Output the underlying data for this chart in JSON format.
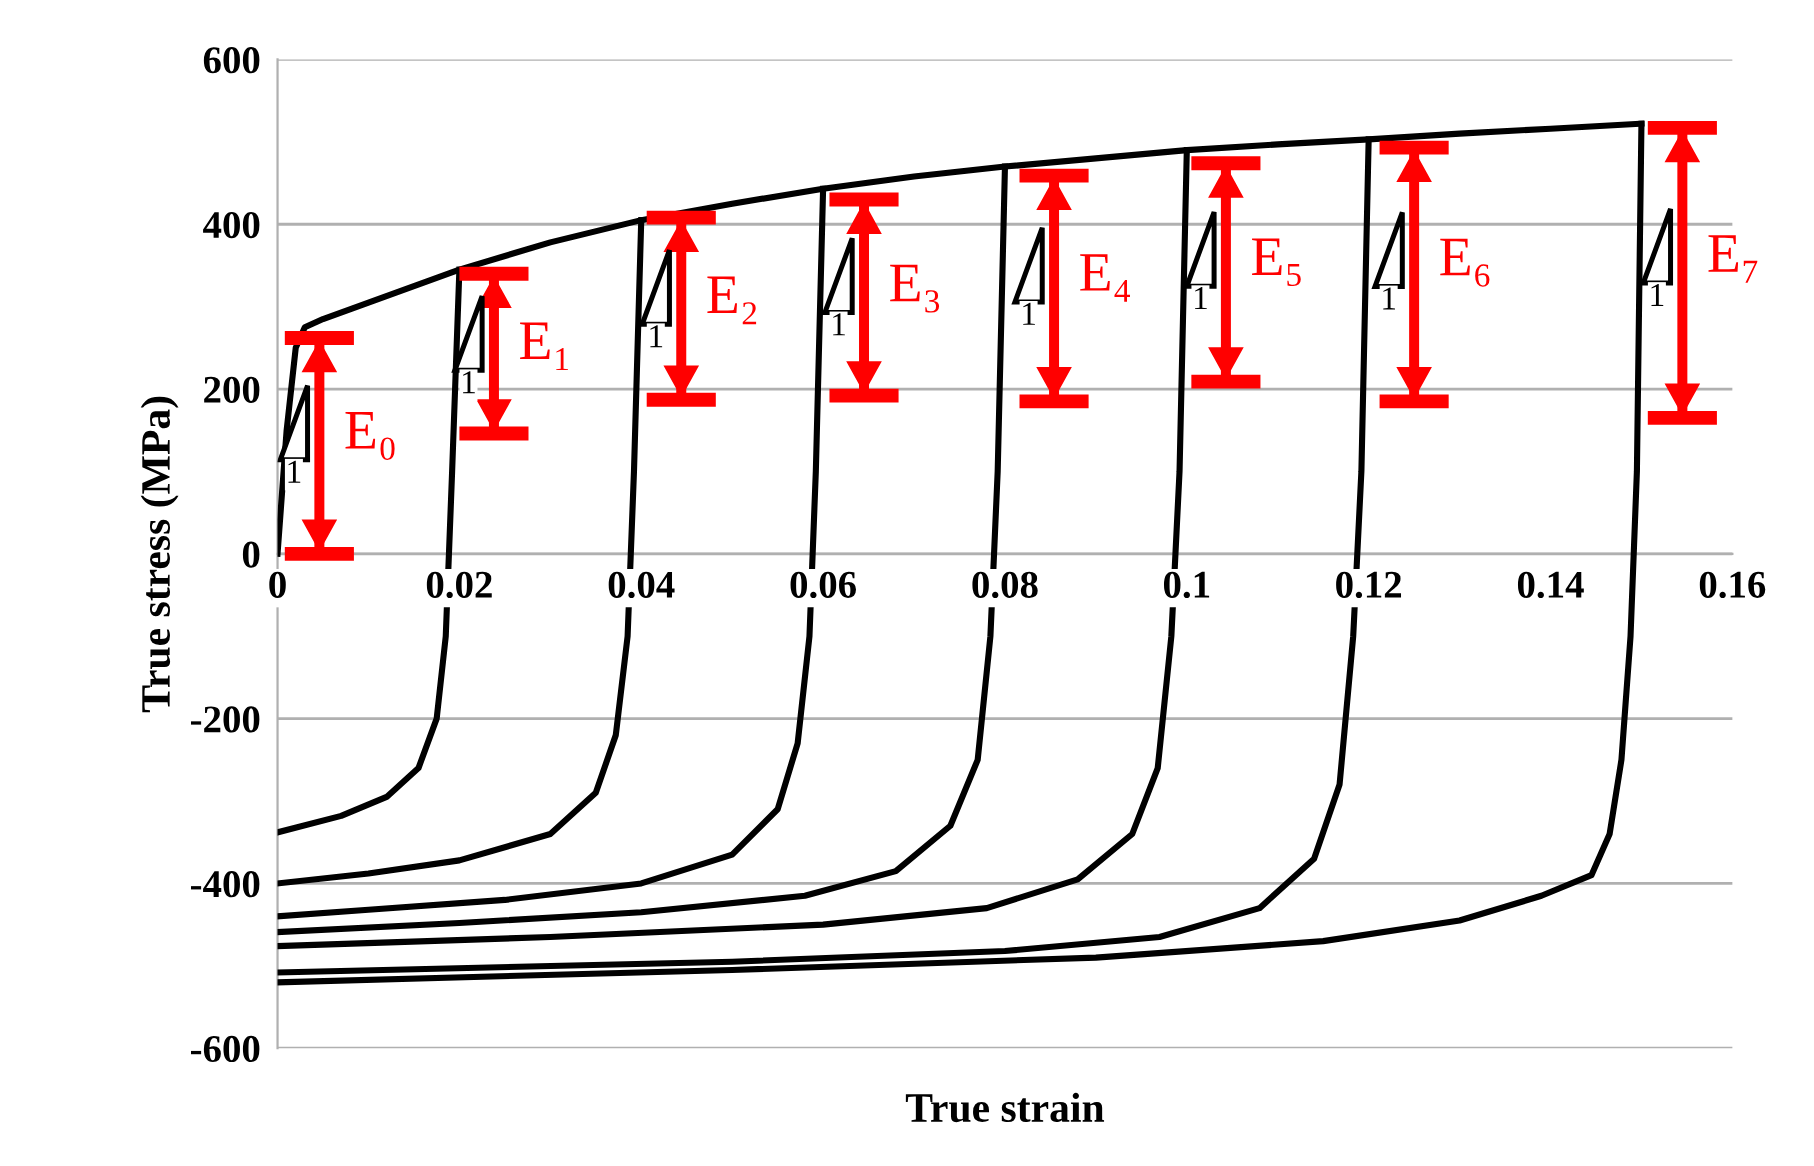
{
  "chart_data": {
    "type": "line",
    "xlabel": "True strain",
    "ylabel": "True stress (MPa)",
    "xlim": [
      0,
      0.16
    ],
    "xticks": [
      0,
      0.02,
      0.04,
      0.06,
      0.08,
      0.1,
      0.12,
      0.14,
      0.16
    ],
    "ylim": [
      -600,
      600
    ],
    "yticks": [
      -600,
      -400,
      -200,
      0,
      200,
      400,
      600
    ],
    "grid": "y",
    "line_style": "solid",
    "marker": "none",
    "series": [
      {
        "color": "#000000",
        "x": [
          0,
          0.001,
          0.002,
          0.003,
          0.005,
          0.01,
          0.02,
          0.03,
          0.04,
          0.05,
          0.06,
          0.07,
          0.08,
          0.09,
          0.1,
          0.11,
          0.12,
          0.13,
          0.14,
          0.15
        ],
        "values": [
          0,
          150,
          250,
          275,
          285,
          305,
          345,
          378,
          405,
          425,
          443,
          458,
          470,
          480,
          490,
          497,
          503,
          510,
          516,
          522
        ]
      },
      {
        "color": "#000000",
        "x": [
          0.02,
          0.0192,
          0.0185,
          0.0175,
          0.0155,
          0.012,
          0.007,
          0
        ],
        "values": [
          345,
          100,
          -100,
          -200,
          -260,
          -295,
          -318,
          -338
        ]
      },
      {
        "color": "#000000",
        "x": [
          0.04,
          0.0392,
          0.0385,
          0.0372,
          0.035,
          0.03,
          0.02,
          0.01,
          0
        ],
        "values": [
          405,
          100,
          -100,
          -220,
          -290,
          -340,
          -372,
          -388,
          -400
        ]
      },
      {
        "color": "#000000",
        "x": [
          0.06,
          0.0592,
          0.0585,
          0.0572,
          0.055,
          0.05,
          0.04,
          0.025,
          0.01,
          0
        ],
        "values": [
          443,
          100,
          -100,
          -230,
          -310,
          -365,
          -400,
          -420,
          -432,
          -440
        ]
      },
      {
        "color": "#000000",
        "x": [
          0.08,
          0.0792,
          0.0784,
          0.077,
          0.074,
          0.068,
          0.058,
          0.04,
          0.02,
          0
        ],
        "values": [
          470,
          100,
          -100,
          -250,
          -330,
          -385,
          -415,
          -435,
          -448,
          -459
        ]
      },
      {
        "color": "#000000",
        "x": [
          0.1,
          0.0992,
          0.0983,
          0.0968,
          0.094,
          0.088,
          0.078,
          0.06,
          0.03,
          0
        ],
        "values": [
          490,
          100,
          -100,
          -260,
          -340,
          -395,
          -430,
          -450,
          -465,
          -476
        ]
      },
      {
        "color": "#000000",
        "x": [
          0.12,
          0.1192,
          0.1183,
          0.1168,
          0.114,
          0.108,
          0.097,
          0.08,
          0.05,
          0
        ],
        "values": [
          503,
          100,
          -100,
          -280,
          -370,
          -430,
          -465,
          -482,
          -495,
          -508
        ]
      },
      {
        "color": "#000000",
        "x": [
          0.15,
          0.1495,
          0.1488,
          0.1478,
          0.1465,
          0.1445,
          0.139,
          0.13,
          0.115,
          0.09,
          0.05,
          0
        ],
        "values": [
          522,
          100,
          -100,
          -250,
          -340,
          -390,
          -415,
          -445,
          -470,
          -490,
          -505,
          -520
        ]
      },
      {
        "type": "bar",
        "color": "#ff0000",
        "x": [
          0.0046,
          0.0238,
          0.0444,
          0.0645,
          0.0854,
          0.1043,
          0.125,
          0.1545
        ],
        "base": [
          0,
          146,
          187,
          192,
          185,
          209,
          185,
          165
        ],
        "values": [
          262,
          194,
          221,
          238,
          274,
          265,
          308,
          352
        ]
      }
    ],
    "annotations": [
      "E₀",
      "1",
      "E₁",
      "1",
      "E₂",
      "1",
      "E₃",
      "1",
      "E₄",
      "1",
      "E₅",
      "1",
      "E₆",
      "1",
      "E₇",
      "1"
    ]
  }
}
